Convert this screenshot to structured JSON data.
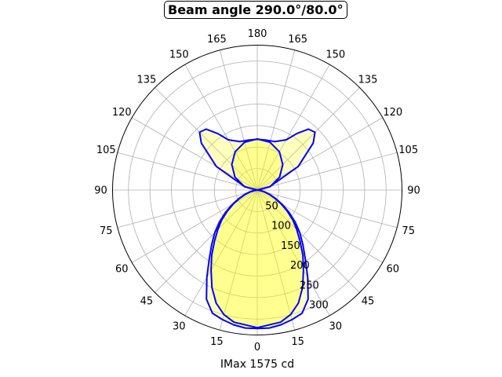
{
  "chart_data": {
    "type": "polar-line",
    "title": "Beam angle 290.0°/80.0°",
    "xlabel": "IMax 1575 cd",
    "angle_ticks": [
      "0",
      "15",
      "30",
      "45",
      "60",
      "75",
      "90",
      "105",
      "120",
      "135",
      "150",
      "165",
      "180"
    ],
    "angle_tick_values": [
      0,
      15,
      30,
      45,
      60,
      75,
      90,
      105,
      120,
      135,
      150,
      165,
      180
    ],
    "radial_ticks": [
      50,
      100,
      150,
      200,
      250,
      300
    ],
    "rlim": [
      0,
      337
    ],
    "grid": true,
    "line_color": "#0000ff",
    "fill_color": "#ffff00",
    "series": [
      {
        "angles": [
          0,
          5,
          10,
          15,
          20,
          25,
          30,
          35,
          40,
          45,
          50,
          55,
          60,
          65,
          70,
          75,
          80,
          85,
          90,
          105,
          120,
          130,
          135,
          140,
          145,
          150,
          160,
          170,
          180
        ],
        "values": [
          322,
          322,
          318,
          312,
          305,
          280,
          235,
          195,
          165,
          140,
          115,
          90,
          68,
          48,
          32,
          20,
          10,
          4,
          0,
          30,
          110,
          170,
          190,
          185,
          160,
          135,
          120,
          118,
          118
        ]
      },
      {
        "angles": [
          0,
          10,
          15,
          20,
          25,
          30,
          35,
          40,
          45,
          50,
          55,
          60,
          65,
          70,
          75,
          80,
          85,
          90,
          105,
          120,
          135,
          150,
          165,
          180
        ],
        "values": [
          320,
          312,
          300,
          280,
          250,
          215,
          185,
          155,
          130,
          108,
          85,
          64,
          45,
          30,
          18,
          9,
          3,
          0,
          31,
          60,
          84,
          103,
          115,
          119
        ]
      }
    ]
  }
}
